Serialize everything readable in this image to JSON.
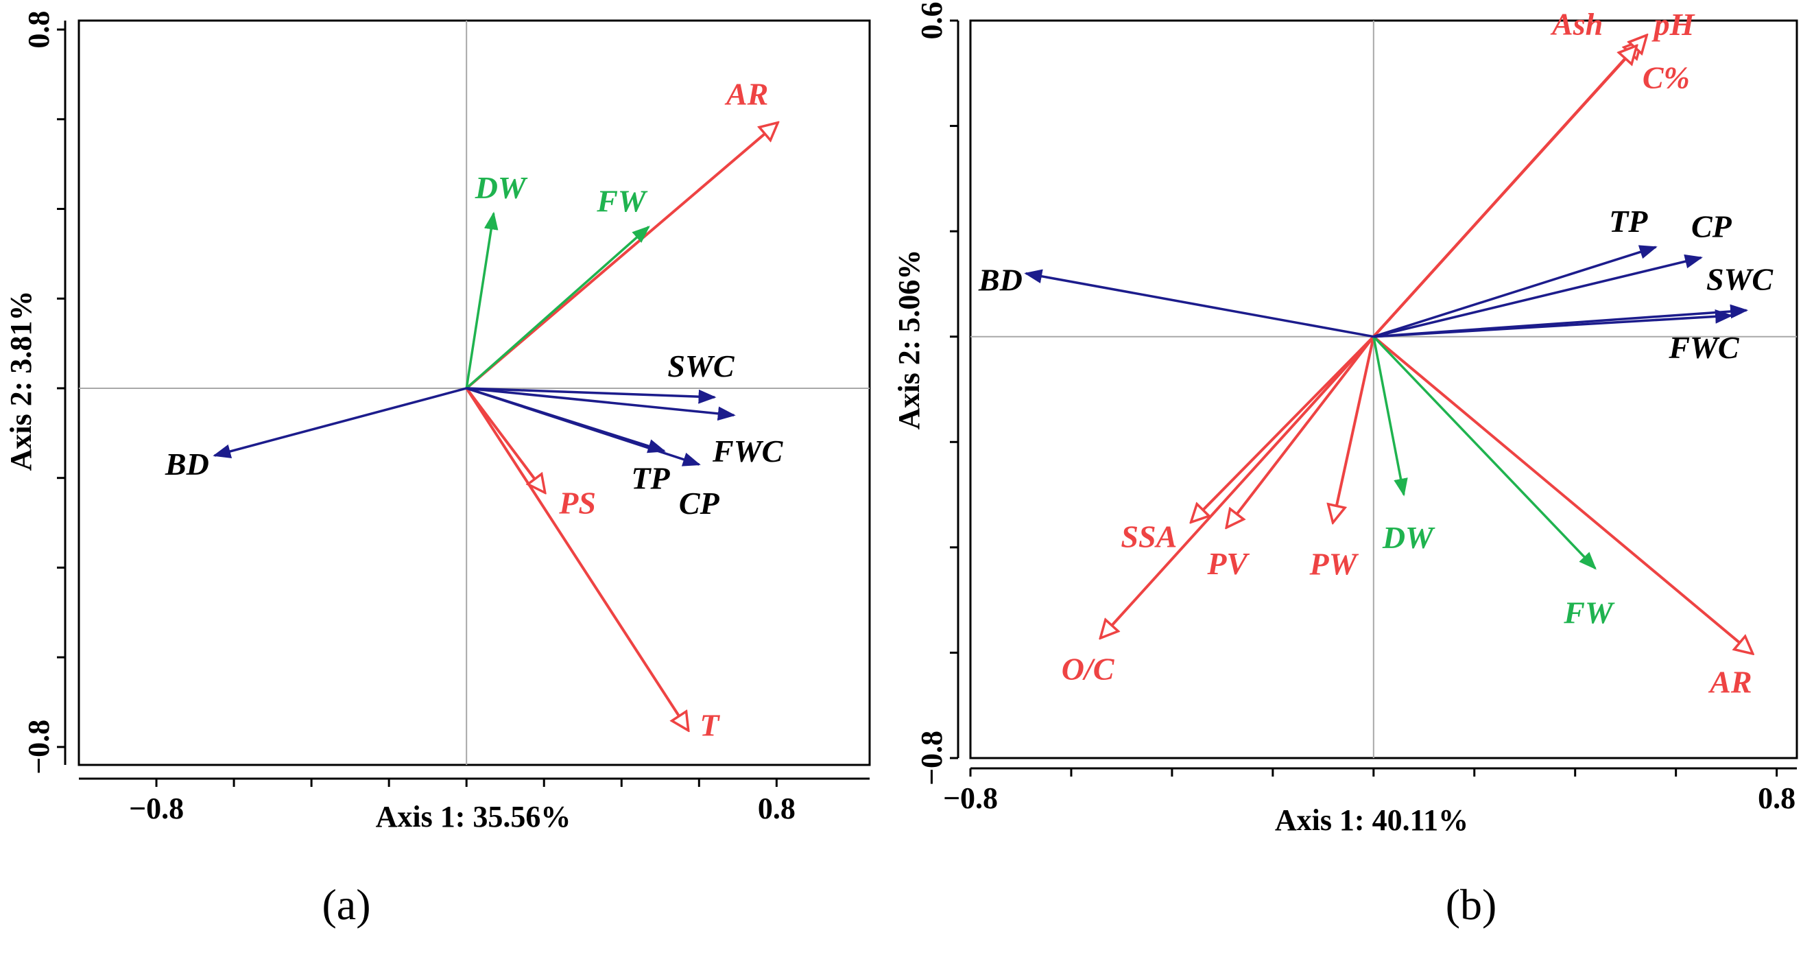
{
  "colors": {
    "red": "#ee4343",
    "navy": "#1c1c8c",
    "green": "#1fb34f",
    "black": "#000000",
    "guide": "#a8a8a8"
  },
  "chart_data": [
    {
      "type": "biplot",
      "panel_label": "(a)",
      "xlabel": "Axis 1: 35.56%",
      "ylabel": "Axis 2: 3.81%",
      "xlim": [
        -1.0,
        1.04
      ],
      "ylim": [
        -0.84,
        0.82
      ],
      "x_tick_labels": [
        {
          "value": -0.8,
          "label": "−0.8"
        },
        {
          "value": 0.8,
          "label": "0.8"
        }
      ],
      "y_tick_labels": [
        {
          "value": 0.8,
          "label": "0.8"
        },
        {
          "value": -0.8,
          "label": "−0.8"
        }
      ],
      "x_minor_ticks": [
        -0.8,
        -0.6,
        -0.4,
        -0.2,
        0,
        0.2,
        0.4,
        0.6,
        0.8
      ],
      "y_minor_ticks": [
        -0.8,
        -0.6,
        -0.4,
        -0.2,
        0,
        0.2,
        0.4,
        0.6,
        0.8
      ],
      "vectors": [
        {
          "name": "AR",
          "x": 0.8,
          "y": 0.59,
          "color": "red",
          "head": "open",
          "label_anchor": "end",
          "label_dx": -12,
          "label_dy": -28
        },
        {
          "name": "T",
          "x": 0.57,
          "y": -0.76,
          "color": "red",
          "head": "open",
          "label_anchor": "start",
          "label_dx": 18,
          "label_dy": 10
        },
        {
          "name": "PS",
          "x": 0.2,
          "y": -0.23,
          "color": "red",
          "head": "open",
          "label_anchor": "start",
          "label_dx": 22,
          "label_dy": 32
        },
        {
          "name": "DW",
          "x": 0.07,
          "y": 0.39,
          "color": "green",
          "head": "filled",
          "label_anchor": "middle",
          "label_dx": 10,
          "label_dy": -22
        },
        {
          "name": "FW",
          "x": 0.47,
          "y": 0.36,
          "color": "green",
          "head": "filled",
          "label_anchor": "end",
          "label_dx": -4,
          "label_dy": -22
        },
        {
          "name": "SWC",
          "x": 0.64,
          "y": -0.02,
          "color": "navy",
          "head": "filled",
          "label_anchor": "middle",
          "label_dx": -20,
          "label_dy": -30
        },
        {
          "name": "FWC",
          "x": 0.69,
          "y": -0.06,
          "color": "navy",
          "head": "filled",
          "label_anchor": "middle",
          "label_dx": 20,
          "label_dy": 68
        },
        {
          "name": "TP",
          "x": 0.51,
          "y": -0.14,
          "color": "navy",
          "head": "filled",
          "label_anchor": "middle",
          "label_dx": -20,
          "label_dy": 55
        },
        {
          "name": "CP",
          "x": 0.6,
          "y": -0.17,
          "color": "navy",
          "head": "filled",
          "label_anchor": "middle",
          "label_dx": 0,
          "label_dy": 72
        },
        {
          "name": "BD",
          "x": -0.65,
          "y": -0.15,
          "color": "navy",
          "head": "filled",
          "label_anchor": "end",
          "label_dx": -8,
          "label_dy": 28
        }
      ]
    },
    {
      "type": "biplot",
      "panel_label": "(b)",
      "xlabel": "Axis 1: 40.11%",
      "ylabel": "Axis 2: 5.06%",
      "xlim": [
        -0.8,
        0.84
      ],
      "ylim": [
        -0.8,
        0.6
      ],
      "x_tick_labels": [
        {
          "value": -0.8,
          "label": "−0.8"
        },
        {
          "value": 0.8,
          "label": "0.8"
        }
      ],
      "y_tick_labels": [
        {
          "value": 0.6,
          "label": "0.6"
        },
        {
          "value": -0.8,
          "label": "−0.8"
        }
      ],
      "x_minor_ticks": [
        -0.8,
        -0.6,
        -0.4,
        -0.2,
        0,
        0.2,
        0.4,
        0.6,
        0.8
      ],
      "y_minor_ticks": [
        -0.8,
        -0.6,
        -0.4,
        -0.2,
        0,
        0.2,
        0.4,
        0.6
      ],
      "vectors": [
        {
          "name": "Ash",
          "x": 0.53,
          "y": 0.56,
          "color": "red",
          "head": "open",
          "label_anchor": "end",
          "label_dx": -55,
          "label_dy": -10
        },
        {
          "name": "pH",
          "x": 0.54,
          "y": 0.57,
          "color": "red",
          "head": "open",
          "label_anchor": "start",
          "label_dx": 12,
          "label_dy": -2
        },
        {
          "name": "C%",
          "x": 0.52,
          "y": 0.55,
          "color": "red",
          "head": "open",
          "label_anchor": "start",
          "label_dx": 10,
          "label_dy": 60
        },
        {
          "name": "AR",
          "x": 0.75,
          "y": -0.6,
          "color": "red",
          "head": "open",
          "label_anchor": "middle",
          "label_dx": -30,
          "label_dy": 58
        },
        {
          "name": "SSA",
          "x": -0.36,
          "y": -0.35,
          "color": "red",
          "head": "open",
          "label_anchor": "end",
          "label_dx": -22,
          "label_dy": 38
        },
        {
          "name": "PV",
          "x": -0.29,
          "y": -0.36,
          "color": "red",
          "head": "open",
          "label_anchor": "middle",
          "label_dx": 0,
          "label_dy": 70
        },
        {
          "name": "PW",
          "x": -0.08,
          "y": -0.35,
          "color": "red",
          "head": "open",
          "label_anchor": "middle",
          "label_dx": 0,
          "label_dy": 78
        },
        {
          "name": "O/C",
          "x": -0.54,
          "y": -0.57,
          "color": "red",
          "head": "open",
          "label_anchor": "middle",
          "label_dx": -20,
          "label_dy": 62
        },
        {
          "name": "DW",
          "x": 0.06,
          "y": -0.3,
          "color": "green",
          "head": "filled",
          "label_anchor": "middle",
          "label_dx": 6,
          "label_dy": 78
        },
        {
          "name": "FW",
          "x": 0.44,
          "y": -0.44,
          "color": "green",
          "head": "filled",
          "label_anchor": "middle",
          "label_dx": -10,
          "label_dy": 80
        },
        {
          "name": "TP",
          "x": 0.56,
          "y": 0.17,
          "color": "navy",
          "head": "filled",
          "label_anchor": "middle",
          "label_dx": -40,
          "label_dy": -22
        },
        {
          "name": "CP",
          "x": 0.65,
          "y": 0.15,
          "color": "navy",
          "head": "filled",
          "label_anchor": "middle",
          "label_dx": 15,
          "label_dy": -30
        },
        {
          "name": "SWC",
          "x": 0.74,
          "y": 0.05,
          "color": "navy",
          "head": "filled",
          "label_anchor": "middle",
          "label_dx": -10,
          "label_dy": -30
        },
        {
          "name": "FWC",
          "x": 0.71,
          "y": 0.04,
          "color": "navy",
          "head": "filled",
          "label_anchor": "middle",
          "label_dx": -40,
          "label_dy": 62
        },
        {
          "name": "BD",
          "x": -0.69,
          "y": 0.12,
          "color": "navy",
          "head": "filled",
          "label_anchor": "end",
          "label_dx": -5,
          "label_dy": 25
        }
      ]
    }
  ]
}
